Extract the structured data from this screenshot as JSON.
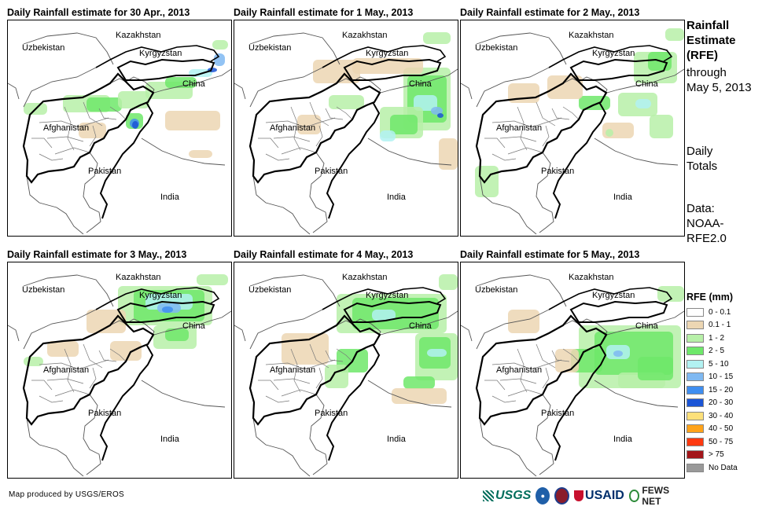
{
  "panels": [
    {
      "title": "Daily Rainfall estimate for 30 Apr., 2013"
    },
    {
      "title": "Daily Rainfall estimate for 1 May., 2013"
    },
    {
      "title": "Daily Rainfall estimate for 2 May., 2013"
    },
    {
      "title": "Daily Rainfall estimate for 3 May., 2013"
    },
    {
      "title": "Daily Rainfall estimate for 4 May., 2013"
    },
    {
      "title": "Daily Rainfall estimate for 5 May., 2013"
    }
  ],
  "map_labels": {
    "kazakhstan": "Kazakhstan",
    "uzbekistan": "Uzbekistan",
    "kyrgyzstan": "Kyrgyzstan",
    "china": "China",
    "afghanistan": "Afghanistan",
    "pakistan": "Pakistan",
    "india": "India"
  },
  "side": {
    "title_line1": "Rainfall",
    "title_line2": "Estimate",
    "title_line3": "(RFE)",
    "through": "through",
    "date": "May 5, 2013",
    "daily1": "Daily",
    "daily2": "Totals",
    "data1": "Data:",
    "data2": "NOAA-",
    "data3": "RFE2.0"
  },
  "legend": {
    "title": "RFE (mm)",
    "items": [
      {
        "label": "0 - 0.1",
        "color": "#ffffff"
      },
      {
        "label": "0.1 - 1",
        "color": "#ecd6b3"
      },
      {
        "label": "1 - 2",
        "color": "#b7f0a8"
      },
      {
        "label": "2 - 5",
        "color": "#6ee86a"
      },
      {
        "label": "5 - 10",
        "color": "#b2f2f2"
      },
      {
        "label": "10 - 15",
        "color": "#7fb9f2"
      },
      {
        "label": "15 - 20",
        "color": "#3f8ef0"
      },
      {
        "label": "20 - 30",
        "color": "#1b55d6"
      },
      {
        "label": "30 - 40",
        "color": "#fde07a"
      },
      {
        "label": "40 - 50",
        "color": "#ffa31a"
      },
      {
        "label": "50 - 75",
        "color": "#ff3a10"
      },
      {
        "label": "> 75",
        "color": "#a3161a"
      },
      {
        "label": "No Data",
        "color": "#999999"
      }
    ]
  },
  "footer": {
    "credit": "Map produced by USGS/EROS"
  },
  "logos": {
    "usgs": "USGS",
    "usaid": "USAID",
    "fews": "FEWS NET"
  }
}
